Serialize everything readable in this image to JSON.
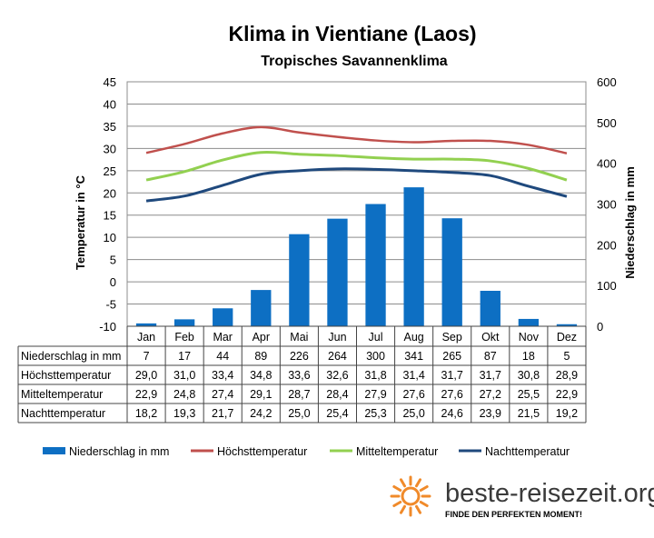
{
  "header": {
    "title": "Klima in Vientiane (Laos)",
    "subtitle": "Tropisches  Savannenklima"
  },
  "branding": {
    "name": "beste-reisezeit.org",
    "tagline": "FINDE DEN PERFEKTEN MOMENT!",
    "sun_color": "#f08a2a"
  },
  "colors": {
    "precip": "#0d6fc3",
    "max": "#c0504d",
    "mean": "#92d050",
    "night": "#1f497d"
  },
  "chart_data": {
    "type": "bar",
    "title": "Klima in Vientiane (Laos)",
    "subtitle": "Tropisches  Savannenklima",
    "categories": [
      "Jan",
      "Feb",
      "Mar",
      "Apr",
      "Mai",
      "Jun",
      "Jul",
      "Aug",
      "Sep",
      "Okt",
      "Nov",
      "Dez"
    ],
    "y_left": {
      "label": "Temperatur in °C",
      "ylim": [
        -10,
        45
      ],
      "ticks": [
        45,
        40,
        35,
        30,
        25,
        20,
        15,
        10,
        5,
        0,
        -5,
        -10
      ]
    },
    "y_right": {
      "label": "Niederschlag in mm",
      "ylim": [
        0,
        600
      ],
      "ticks": [
        600,
        500,
        400,
        300,
        200,
        100,
        0
      ]
    },
    "grid": true,
    "legend_position": "bottom",
    "series": [
      {
        "name": "Niederschlag in mm",
        "type": "bar",
        "axis": "right",
        "values": [
          7,
          17,
          44,
          89,
          226,
          264,
          300,
          341,
          265,
          87,
          18,
          5
        ],
        "labels": [
          "7",
          "17",
          "44",
          "89",
          "226",
          "264",
          "300",
          "341",
          "265",
          "87",
          "18",
          "5"
        ]
      },
      {
        "name": "Höchsttemperatur",
        "type": "line",
        "axis": "left",
        "values": [
          29.0,
          31.0,
          33.4,
          34.8,
          33.6,
          32.6,
          31.8,
          31.4,
          31.7,
          31.7,
          30.8,
          28.9
        ],
        "labels": [
          "29,0",
          "31,0",
          "33,4",
          "34,8",
          "33,6",
          "32,6",
          "31,8",
          "31,4",
          "31,7",
          "31,7",
          "30,8",
          "28,9"
        ]
      },
      {
        "name": "Mitteltemperatur",
        "type": "line",
        "axis": "left",
        "values": [
          22.9,
          24.8,
          27.4,
          29.1,
          28.7,
          28.4,
          27.9,
          27.6,
          27.6,
          27.2,
          25.5,
          22.9
        ],
        "labels": [
          "22,9",
          "24,8",
          "27,4",
          "29,1",
          "28,7",
          "28,4",
          "27,9",
          "27,6",
          "27,6",
          "27,2",
          "25,5",
          "22,9"
        ]
      },
      {
        "name": "Nachttemperatur",
        "type": "line",
        "axis": "left",
        "values": [
          18.2,
          19.3,
          21.7,
          24.2,
          25.0,
          25.4,
          25.3,
          25.0,
          24.6,
          23.9,
          21.5,
          19.2
        ],
        "labels": [
          "18,2",
          "19,3",
          "21,7",
          "24,2",
          "25,0",
          "25,4",
          "25,3",
          "25,0",
          "24,6",
          "23,9",
          "21,5",
          "19,2"
        ]
      }
    ]
  }
}
